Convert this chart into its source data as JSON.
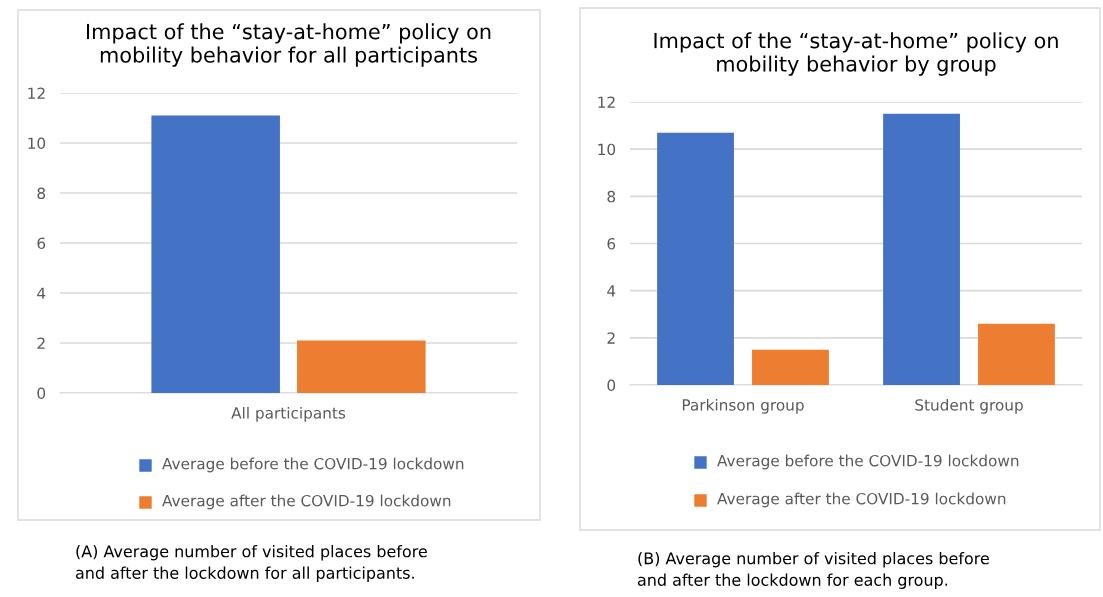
{
  "chart_data": [
    {
      "type": "bar",
      "title": "Impact of the “stay-at-home” policy on\nmobility behavior for all participants",
      "categories": [
        "All participants"
      ],
      "series": [
        {
          "name": "Average before the COVID-19 lockdown",
          "color": "#4472c4",
          "values": [
            11.1
          ]
        },
        {
          "name": "Average after the COVID-19 lockdown",
          "color": "#ed7d31",
          "values": [
            2.1
          ]
        }
      ],
      "ylim": [
        0,
        12
      ],
      "yticks": [
        0,
        2,
        4,
        6,
        8,
        10,
        12
      ],
      "grid": "y",
      "legend": "bottom",
      "annotations": [
        "(A) Average number of visited places before\nand after the lockdown for all participants."
      ]
    },
    {
      "type": "bar",
      "title": "Impact of the “stay-at-home” policy on\nmobility behavior by group",
      "categories": [
        "Parkinson group",
        "Student group"
      ],
      "series": [
        {
          "name": "Average before the COVID-19 lockdown",
          "color": "#4472c4",
          "values": [
            10.7,
            11.5
          ]
        },
        {
          "name": "Average after the COVID-19 lockdown",
          "color": "#ed7d31",
          "values": [
            1.5,
            2.6
          ]
        }
      ],
      "ylim": [
        0,
        12
      ],
      "yticks": [
        0,
        2,
        4,
        6,
        8,
        10,
        12
      ],
      "grid": "y",
      "legend": "bottom",
      "annotations": [
        "(B) Average number of visited places before\nand after the lockdown for each group."
      ]
    }
  ]
}
